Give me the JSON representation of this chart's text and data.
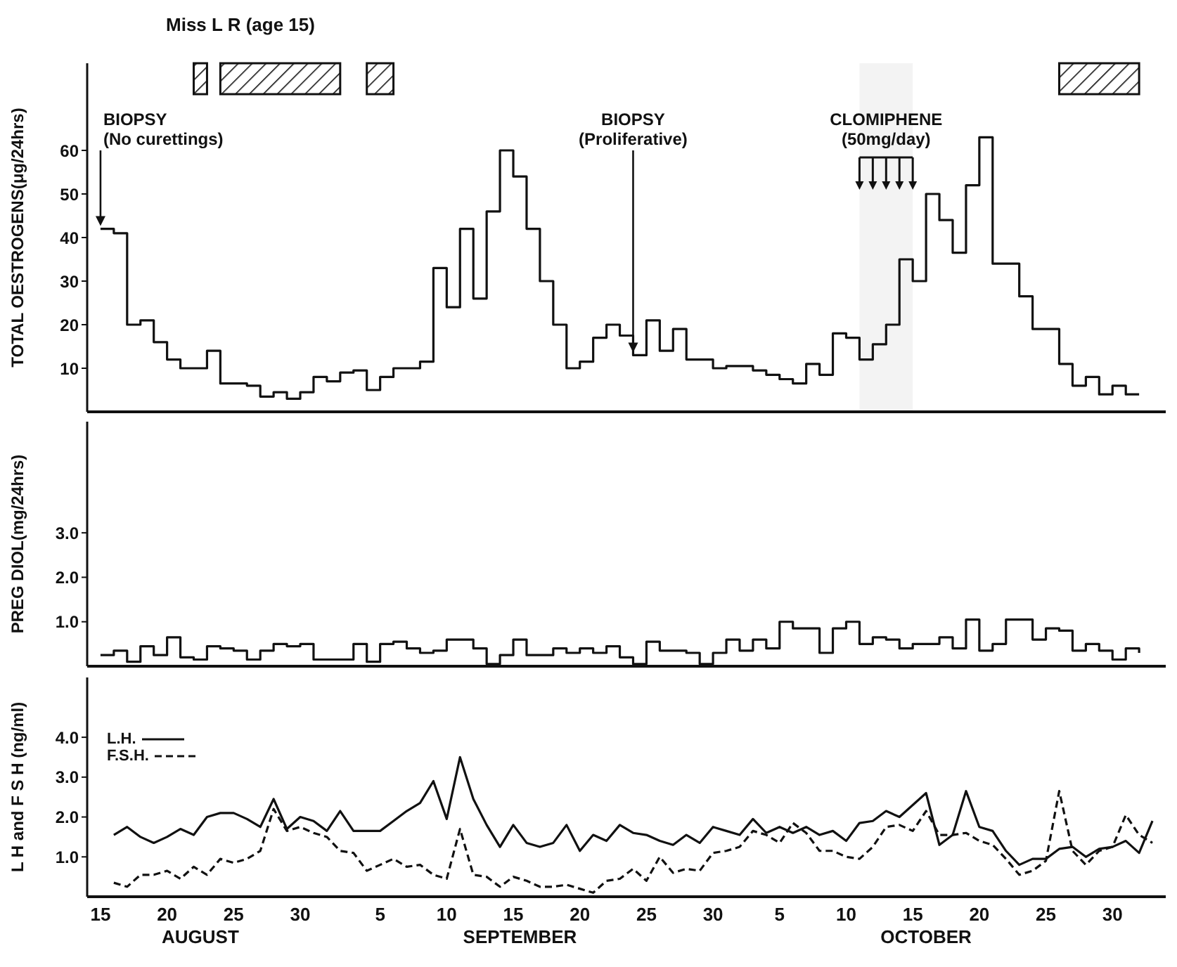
{
  "chart_data": [
    {
      "type": "step",
      "title": "Miss L R (age 15)",
      "ylabel": "TOTAL OESTROGENS(μg/24hrs)",
      "xlim": [
        "--08-14",
        "--11-03"
      ],
      "ylim": [
        0,
        80
      ],
      "yticks": [
        10,
        20,
        30,
        40,
        50,
        60
      ],
      "tick_labels": "y",
      "marker": "none",
      "color": "#111111",
      "xticks": [
        {
          "value": "--08-15",
          "label": "15"
        },
        {
          "value": "--08-20",
          "label": "20"
        },
        {
          "value": "--08-25",
          "label": "25"
        },
        {
          "value": "--08-30",
          "label": "30"
        },
        {
          "value": "--09-05",
          "label": "5"
        },
        {
          "value": "--09-10",
          "label": "10"
        },
        {
          "value": "--09-15",
          "label": "15"
        },
        {
          "value": "--09-20",
          "label": "20"
        },
        {
          "value": "--09-25",
          "label": "25"
        },
        {
          "value": "--09-30",
          "label": "30"
        },
        {
          "value": "--10-05",
          "label": "5"
        },
        {
          "value": "--10-10",
          "label": "10"
        },
        {
          "value": "--10-15",
          "label": "15"
        },
        {
          "value": "--10-20",
          "label": "20"
        },
        {
          "value": "--10-25",
          "label": "25"
        },
        {
          "value": "--10-30",
          "label": "30"
        }
      ],
      "x": [
        "--08-15",
        "--08-16",
        "--08-17",
        "--08-18",
        "--08-19",
        "--08-20",
        "--08-21",
        "--08-22",
        "--08-23",
        "--08-24",
        "--08-25",
        "--08-26",
        "--08-27",
        "--08-28",
        "--08-29",
        "--08-30",
        "--08-31",
        "--09-01",
        "--09-02",
        "--09-03",
        "--09-04",
        "--09-05",
        "--09-06",
        "--09-07",
        "--09-08",
        "--09-09",
        "--09-10",
        "--09-11",
        "--09-12",
        "--09-13",
        "--09-14",
        "--09-15",
        "--09-16",
        "--09-17",
        "--09-18",
        "--09-19",
        "--09-20",
        "--09-21",
        "--09-22",
        "--09-23",
        "--09-24",
        "--09-25",
        "--09-26",
        "--09-27",
        "--09-28",
        "--09-29",
        "--09-30",
        "--10-01",
        "--10-02",
        "--10-03",
        "--10-04",
        "--10-05",
        "--10-06",
        "--10-07",
        "--10-08",
        "--10-09",
        "--10-10",
        "--10-11",
        "--10-12",
        "--10-13",
        "--10-14",
        "--10-15",
        "--10-16",
        "--10-17",
        "--10-18",
        "--10-19",
        "--10-20",
        "--10-21",
        "--10-22",
        "--10-23",
        "--10-24",
        "--10-25",
        "--10-26",
        "--10-27",
        "--10-28",
        "--10-29",
        "--10-30",
        "--10-31",
        "--11-01"
      ],
      "values": [
        42,
        41,
        20,
        21,
        16,
        12,
        10,
        10,
        14,
        6.5,
        6.5,
        6,
        3.5,
        4.5,
        3,
        4.5,
        8,
        7,
        9,
        9.5,
        5,
        8,
        10,
        10,
        11.5,
        33,
        24,
        42,
        26,
        46,
        60,
        54,
        42,
        30,
        20,
        10,
        11.5,
        17,
        20,
        17.5,
        13,
        21,
        14,
        19,
        12,
        12,
        10,
        10.5,
        10.5,
        9.5,
        8.5,
        7.5,
        6.5,
        11,
        8.5,
        18,
        17,
        12,
        15.5,
        20,
        35,
        30,
        50,
        44,
        36.5,
        52,
        63,
        34,
        34,
        26.5,
        19,
        19,
        11,
        6,
        8,
        4,
        6,
        4,
        4
      ],
      "annotations": [
        {
          "text": "BIOPSY (No curettings)",
          "x": "--08-15",
          "y": 42
        },
        {
          "text": "BIOPSY (Proliferative)",
          "x": "--09-24",
          "y": 13
        }
      ],
      "bands": [
        {
          "axis": "x",
          "from": "--08-22",
          "to": "--08-23"
        },
        {
          "axis": "x",
          "from": "--08-24",
          "to": "--09-02"
        },
        {
          "axis": "x",
          "from": "--09-04",
          "to": "--09-06"
        },
        {
          "axis": "x",
          "from": "--10-26",
          "to": "--11-01"
        },
        {
          "axis": "x",
          "from": "--10-11",
          "to": "--10-15",
          "label": "CLOMIPHENE (50mg/day)"
        }
      ]
    },
    {
      "type": "step",
      "ylabel": "PREG DIOL(mg/24hrs)",
      "xlim": [
        "--08-14",
        "--11-03"
      ],
      "ylim": [
        0,
        5.5
      ],
      "yticks": [
        {
          "value": 1,
          "label": "1.0"
        },
        {
          "value": 2,
          "label": "2.0"
        },
        {
          "value": 3,
          "label": "3.0"
        }
      ],
      "tick_labels": "y",
      "marker": "none",
      "color": "#111111",
      "xticks": [
        {
          "value": "--08-15",
          "label": "15"
        },
        {
          "value": "--08-20",
          "label": "20"
        },
        {
          "value": "--08-25",
          "label": "25"
        },
        {
          "value": "--08-30",
          "label": "30"
        },
        {
          "value": "--09-05",
          "label": "5"
        },
        {
          "value": "--09-10",
          "label": "10"
        },
        {
          "value": "--09-15",
          "label": "15"
        },
        {
          "value": "--09-20",
          "label": "20"
        },
        {
          "value": "--09-25",
          "label": "25"
        },
        {
          "value": "--09-30",
          "label": "30"
        },
        {
          "value": "--10-05",
          "label": "5"
        },
        {
          "value": "--10-10",
          "label": "10"
        },
        {
          "value": "--10-15",
          "label": "15"
        },
        {
          "value": "--10-20",
          "label": "20"
        },
        {
          "value": "--10-25",
          "label": "25"
        },
        {
          "value": "--10-30",
          "label": "30"
        }
      ],
      "x": [
        "--08-15",
        "--08-16",
        "--08-17",
        "--08-18",
        "--08-19",
        "--08-20",
        "--08-21",
        "--08-22",
        "--08-23",
        "--08-24",
        "--08-25",
        "--08-26",
        "--08-27",
        "--08-28",
        "--08-29",
        "--08-30",
        "--08-31",
        "--09-01",
        "--09-02",
        "--09-03",
        "--09-04",
        "--09-05",
        "--09-06",
        "--09-07",
        "--09-08",
        "--09-09",
        "--09-10",
        "--09-11",
        "--09-12",
        "--09-13",
        "--09-14",
        "--09-15",
        "--09-16",
        "--09-17",
        "--09-18",
        "--09-19",
        "--09-20",
        "--09-21",
        "--09-22",
        "--09-23",
        "--09-24",
        "--09-25",
        "--09-26",
        "--09-27",
        "--09-28",
        "--09-29",
        "--09-30",
        "--10-01",
        "--10-02",
        "--10-03",
        "--10-04",
        "--10-05",
        "--10-06",
        "--10-07",
        "--10-08",
        "--10-09",
        "--10-10",
        "--10-11",
        "--10-12",
        "--10-13",
        "--10-14",
        "--10-15",
        "--10-16",
        "--10-17",
        "--10-18",
        "--10-19",
        "--10-20",
        "--10-21",
        "--10-22",
        "--10-23",
        "--10-24",
        "--10-25",
        "--10-26",
        "--10-27",
        "--10-28",
        "--10-29",
        "--10-30",
        "--10-31",
        "--11-01"
      ],
      "values": [
        0.25,
        0.35,
        0.1,
        0.45,
        0.25,
        0.65,
        0.2,
        0.15,
        0.45,
        0.4,
        0.35,
        0.15,
        0.35,
        0.5,
        0.45,
        0.5,
        0.15,
        0.15,
        0.15,
        0.5,
        0.1,
        0.5,
        0.55,
        0.4,
        0.3,
        0.35,
        0.6,
        0.6,
        0.4,
        0.05,
        0.25,
        0.6,
        0.25,
        0.25,
        0.4,
        0.3,
        0.4,
        0.3,
        0.45,
        0.2,
        0.05,
        0.55,
        0.35,
        0.35,
        0.3,
        0.05,
        0.3,
        0.6,
        0.35,
        0.6,
        0.4,
        1.0,
        0.85,
        0.85,
        0.3,
        0.85,
        1.0,
        0.5,
        0.65,
        0.6,
        0.4,
        0.5,
        0.5,
        0.65,
        0.4,
        1.05,
        0.35,
        0.5,
        1.05,
        1.05,
        0.6,
        0.85,
        0.8,
        0.35,
        0.5,
        0.35,
        0.15,
        0.4,
        0.3
      ]
    },
    {
      "type": "line",
      "ylabel": "L H and F S H (ng/ml)",
      "xlim": [
        "--08-14",
        "--11-03"
      ],
      "ylim": [
        0,
        5.5
      ],
      "legend": "top left",
      "marker": "none",
      "xticks": [
        {
          "value": "--08-15",
          "label": "15"
        },
        {
          "value": "--08-20",
          "label": "20"
        },
        {
          "value": "--08-25",
          "label": "25"
        },
        {
          "value": "--08-30",
          "label": "30"
        },
        {
          "value": "--09-05",
          "label": "5"
        },
        {
          "value": "--09-10",
          "label": "10"
        },
        {
          "value": "--09-15",
          "label": "15"
        },
        {
          "value": "--09-20",
          "label": "20"
        },
        {
          "value": "--09-25",
          "label": "25"
        },
        {
          "value": "--09-30",
          "label": "30"
        },
        {
          "value": "--10-05",
          "label": "5"
        },
        {
          "value": "--10-10",
          "label": "10"
        },
        {
          "value": "--10-15",
          "label": "15"
        },
        {
          "value": "--10-20",
          "label": "20"
        },
        {
          "value": "--10-25",
          "label": "25"
        },
        {
          "value": "--10-30",
          "label": "30"
        }
      ],
      "yticks": [
        {
          "value": 1,
          "label": "1.0"
        },
        {
          "value": 2,
          "label": "2.0"
        },
        {
          "value": 3,
          "label": "3.0"
        },
        {
          "value": 4,
          "label": "4.0"
        }
      ],
      "x": [
        "--08-16",
        "--08-17",
        "--08-18",
        "--08-19",
        "--08-20",
        "--08-21",
        "--08-22",
        "--08-23",
        "--08-24",
        "--08-25",
        "--08-26",
        "--08-27",
        "--08-28",
        "--08-29",
        "--08-30",
        "--08-31",
        "--09-01",
        "--09-02",
        "--09-03",
        "--09-04",
        "--09-05",
        "--09-06",
        "--09-07",
        "--09-08",
        "--09-09",
        "--09-10",
        "--09-11",
        "--09-12",
        "--09-13",
        "--09-14",
        "--09-15",
        "--09-16",
        "--09-17",
        "--09-18",
        "--09-19",
        "--09-20",
        "--09-21",
        "--09-22",
        "--09-23",
        "--09-24",
        "--09-25",
        "--09-26",
        "--09-27",
        "--09-28",
        "--09-29",
        "--09-30",
        "--10-01",
        "--10-02",
        "--10-03",
        "--10-04",
        "--10-05",
        "--10-06",
        "--10-07",
        "--10-08",
        "--10-09",
        "--10-10",
        "--10-11",
        "--10-12",
        "--10-13",
        "--10-14",
        "--10-15",
        "--10-16",
        "--10-17",
        "--10-18",
        "--10-19",
        "--10-20",
        "--10-21",
        "--10-22",
        "--10-23",
        "--10-24",
        "--10-25",
        "--10-26",
        "--10-27",
        "--10-28",
        "--10-29",
        "--10-30",
        "--10-31",
        "--11-01",
        "--11-02"
      ],
      "series": [
        {
          "name": "L.H.",
          "color": "#111111",
          "values": [
            1.55,
            1.75,
            1.5,
            1.35,
            1.5,
            1.7,
            1.55,
            2.0,
            2.1,
            2.1,
            1.95,
            1.75,
            2.45,
            1.7,
            2.0,
            1.9,
            1.65,
            2.15,
            1.65,
            1.65,
            1.65,
            1.9,
            2.15,
            2.35,
            2.9,
            1.95,
            3.5,
            2.45,
            1.8,
            1.25,
            1.8,
            1.35,
            1.25,
            1.35,
            1.8,
            1.15,
            1.55,
            1.4,
            1.8,
            1.6,
            1.55,
            1.4,
            1.3,
            1.55,
            1.35,
            1.75,
            1.65,
            1.55,
            1.95,
            1.6,
            1.75,
            1.6,
            1.75,
            1.55,
            1.65,
            1.4,
            1.85,
            1.9,
            2.15,
            2.0,
            2.3,
            2.6,
            1.3,
            1.55,
            2.65,
            1.75,
            1.65,
            1.15,
            0.8,
            0.95,
            0.95,
            1.2,
            1.25,
            1.0,
            1.2,
            1.25,
            1.4,
            1.1,
            1.9
          ]
        },
        {
          "name": "F.S.H.",
          "color": "#111111",
          "line_style": "dashed",
          "values": [
            0.35,
            0.25,
            0.55,
            0.55,
            0.65,
            0.45,
            0.75,
            0.55,
            0.95,
            0.85,
            0.95,
            1.15,
            2.2,
            1.65,
            1.75,
            1.6,
            1.5,
            1.15,
            1.1,
            0.65,
            0.8,
            0.95,
            0.75,
            0.8,
            0.55,
            0.45,
            1.7,
            0.55,
            0.5,
            0.25,
            0.5,
            0.4,
            0.25,
            0.25,
            0.3,
            0.2,
            0.1,
            0.4,
            0.45,
            0.7,
            0.4,
            1.0,
            0.6,
            0.7,
            0.65,
            1.1,
            1.15,
            1.25,
            1.65,
            1.55,
            1.35,
            1.85,
            1.6,
            1.15,
            1.15,
            1.0,
            0.95,
            1.25,
            1.75,
            1.8,
            1.65,
            2.15,
            1.55,
            1.55,
            1.6,
            1.4,
            1.3,
            0.95,
            0.55,
            0.65,
            0.9,
            2.65,
            1.15,
            0.8,
            1.15,
            1.25,
            2.05,
            1.55,
            1.35
          ]
        }
      ],
      "annotations": [
        "AUGUST",
        "SEPTEMBER",
        "OCTOBER"
      ]
    }
  ]
}
